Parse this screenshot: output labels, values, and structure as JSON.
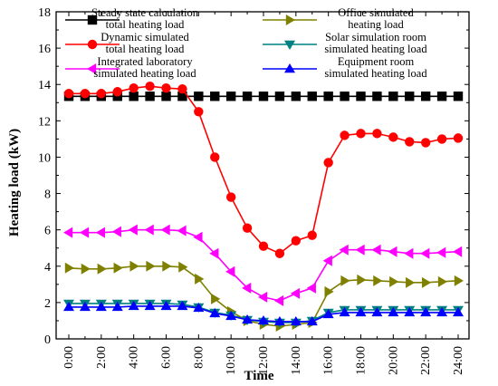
{
  "chart_data": {
    "type": "line",
    "xlabel": "Time",
    "ylabel": "Heating load (kW)",
    "ylim": [
      0,
      18
    ],
    "yticks": [
      "0",
      "2",
      "4",
      "6",
      "8",
      "10",
      "12",
      "14",
      "16",
      "18"
    ],
    "x": [
      0,
      1,
      2,
      3,
      4,
      5,
      6,
      7,
      8,
      9,
      10,
      11,
      12,
      13,
      14,
      15,
      16,
      17,
      18,
      19,
      20,
      21,
      22,
      23,
      24
    ],
    "xticks": [
      "0:00",
      "2:00",
      "4:00",
      "6:00",
      "8:00",
      "10:00",
      "12:00",
      "14:00",
      "16:00",
      "18:00",
      "20:00",
      "22:00",
      "24:00"
    ],
    "legend_placement": "top",
    "series": [
      {
        "name": [
          "Steady state calculation",
          "total heating load"
        ],
        "color": "#000000",
        "marker": "square",
        "values": [
          13.35,
          13.35,
          13.35,
          13.35,
          13.35,
          13.35,
          13.35,
          13.35,
          13.35,
          13.35,
          13.35,
          13.35,
          13.35,
          13.35,
          13.35,
          13.35,
          13.35,
          13.35,
          13.35,
          13.35,
          13.35,
          13.35,
          13.35,
          13.35,
          13.35
        ]
      },
      {
        "name": [
          "Dynamic simulated",
          "total heating load"
        ],
        "color": "#ff0000",
        "marker": "circle",
        "values": [
          13.5,
          13.5,
          13.5,
          13.6,
          13.8,
          13.9,
          13.8,
          13.75,
          12.5,
          10.0,
          7.8,
          6.1,
          5.1,
          4.7,
          5.4,
          5.7,
          9.7,
          11.2,
          11.3,
          11.3,
          11.1,
          10.85,
          10.8,
          11.0,
          11.05
        ]
      },
      {
        "name": [
          "Integrated laboratory",
          "simulated heating load"
        ],
        "color": "#ff00ff",
        "marker": "triangle-left",
        "values": [
          5.85,
          5.85,
          5.85,
          5.9,
          6.0,
          6.0,
          6.0,
          5.95,
          5.6,
          4.7,
          3.7,
          2.8,
          2.3,
          2.1,
          2.5,
          2.8,
          4.3,
          4.9,
          4.9,
          4.9,
          4.8,
          4.7,
          4.7,
          4.75,
          4.8
        ]
      },
      {
        "name": [
          "Office simulated",
          "heating load"
        ],
        "color": "#808000",
        "marker": "triangle-right",
        "values": [
          3.9,
          3.85,
          3.85,
          3.9,
          4.0,
          4.0,
          4.0,
          3.95,
          3.3,
          2.2,
          1.5,
          1.0,
          0.8,
          0.7,
          0.8,
          0.9,
          2.6,
          3.2,
          3.25,
          3.2,
          3.15,
          3.1,
          3.1,
          3.15,
          3.2
        ]
      },
      {
        "name": [
          "Solar simulation room",
          "simulated heating load"
        ],
        "color": "#008080",
        "marker": "triangle-down",
        "values": [
          1.95,
          1.95,
          1.95,
          1.95,
          1.95,
          1.95,
          1.95,
          1.9,
          1.75,
          1.45,
          1.3,
          1.05,
          0.95,
          0.9,
          0.9,
          1.0,
          1.45,
          1.6,
          1.6,
          1.6,
          1.6,
          1.6,
          1.6,
          1.6,
          1.6
        ]
      },
      {
        "name": [
          "Equipment room",
          "simulated heating load"
        ],
        "color": "#0000ff",
        "marker": "triangle-up",
        "values": [
          1.75,
          1.75,
          1.75,
          1.75,
          1.8,
          1.8,
          1.8,
          1.8,
          1.7,
          1.4,
          1.25,
          1.05,
          1.0,
          0.95,
          0.95,
          0.95,
          1.35,
          1.45,
          1.45,
          1.45,
          1.45,
          1.45,
          1.45,
          1.45,
          1.45
        ]
      }
    ]
  }
}
